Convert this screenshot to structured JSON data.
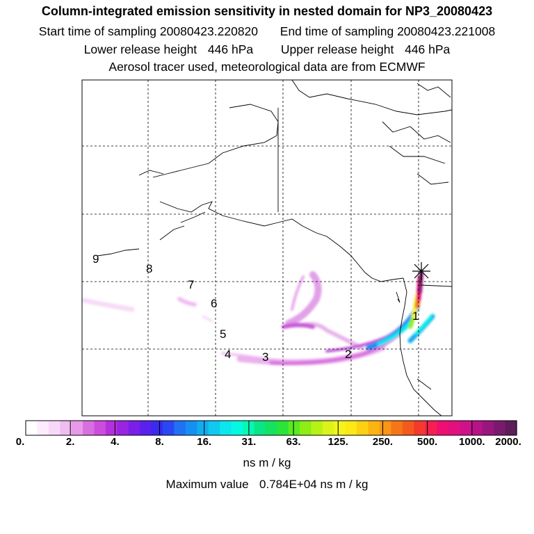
{
  "title": "Column-integrated emission sensitivity in nested domain for NP3_20080423",
  "sampling": {
    "start_label": "Start time of sampling",
    "start_value": "20080423.220820",
    "end_label": "End time of sampling",
    "end_value": "20080423.221008"
  },
  "release": {
    "lower_label": "Lower release height",
    "lower_value": "446 hPa",
    "upper_label": "Upper release height",
    "upper_value": "446 hPa"
  },
  "source_note": "Aerosol tracer used, meteorological data are from ECMWF",
  "trajectory_labels": [
    "1",
    "2",
    "3",
    "4",
    "5",
    "6",
    "7",
    "8",
    "9"
  ],
  "colorbar": {
    "tick_labels": [
      "0.",
      "2.",
      "4.",
      "8.",
      "16.",
      "31.",
      "63.",
      "125.",
      "250.",
      "500.",
      "1000.",
      "2000."
    ],
    "colors": [
      "#ffffff",
      "#fcecfc",
      "#f8d8f8",
      "#f0bcf2",
      "#e79ae9",
      "#d86fe0",
      "#cc4ddc",
      "#b630dd",
      "#9a24e4",
      "#7a1fe8",
      "#5a20ee",
      "#3a2bef",
      "#2b47f4",
      "#1f72f4",
      "#1590f2",
      "#12acef",
      "#0fc9ee",
      "#0be6ee",
      "#06f8e2",
      "#07f7b6",
      "#0ae686",
      "#15e35f",
      "#2ae43a",
      "#59ea1f",
      "#8ded14",
      "#b7f215",
      "#dbf318",
      "#f2f41b",
      "#fbe815",
      "#fdd012",
      "#fbb513",
      "#f89616",
      "#f57618",
      "#f45a1d",
      "#f33a2d",
      "#f52050",
      "#ef0f72",
      "#e2107e",
      "#d0128a",
      "#b61486",
      "#9a167d",
      "#7a1a6e",
      "#5c1d5a"
    ],
    "units": "ns m / kg"
  },
  "maximum": {
    "label": "Maximum value",
    "value": "0.784E+04",
    "units": "ns m / kg"
  }
}
